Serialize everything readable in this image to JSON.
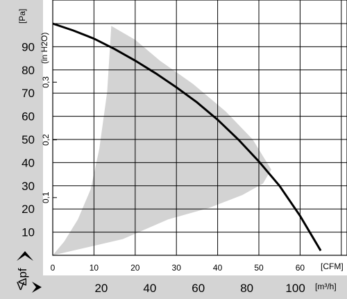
{
  "chart_data": {
    "type": "line",
    "left_axis": {
      "unit": "[Pa]",
      "label": "Δpf",
      "ticks": [
        10,
        20,
        30,
        40,
        50,
        60,
        70,
        80,
        90
      ],
      "range": [
        0,
        100
      ]
    },
    "inner_axis": {
      "unit": "(in H2O)",
      "ticks": [
        "0,1",
        "0,2",
        "0,3"
      ],
      "values": [
        0.1,
        0.2,
        0.3
      ]
    },
    "x_axis_cfm": {
      "unit": "[CFM]",
      "ticks": [
        0,
        10,
        20,
        30,
        40,
        50,
        60
      ],
      "range": [
        0,
        70
      ]
    },
    "x_axis_m3h": {
      "unit": "[m³/h]",
      "label": "V̇",
      "ticks": [
        20,
        40,
        60,
        80,
        100
      ]
    },
    "curve": {
      "x_cfm": [
        0,
        5,
        10,
        15,
        20,
        25,
        30,
        35,
        40,
        45,
        50,
        55,
        60,
        65
      ],
      "y_pa": [
        100,
        97,
        93.5,
        89,
        84,
        78.5,
        72.5,
        66,
        58.5,
        50,
        40.5,
        30,
        17,
        2
      ]
    },
    "operating_region": {
      "x_cfm": [
        0,
        2.8,
        6.1,
        9.2,
        11.3,
        13.2,
        14.2,
        20,
        26,
        34,
        42,
        48.5,
        53,
        51,
        46,
        38,
        28,
        17,
        0
      ],
      "y_pa": [
        0,
        6,
        15.5,
        28.5,
        46,
        70.5,
        99,
        93,
        84,
        74,
        62,
        50,
        37,
        31,
        26,
        20.5,
        15.5,
        7,
        0
      ]
    }
  }
}
